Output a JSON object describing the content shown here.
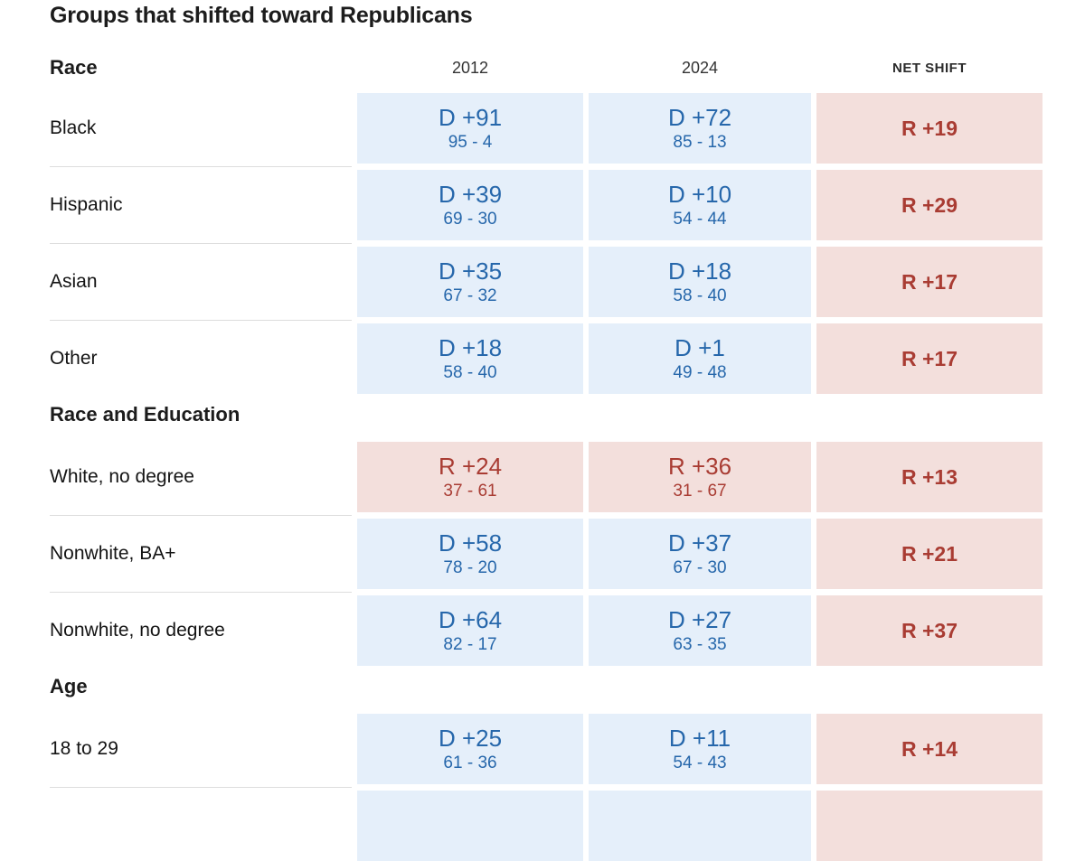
{
  "title": "Groups that shifted toward Republicans",
  "chart_data": {
    "type": "table",
    "title": "Groups that shifted toward Republicans",
    "columns": [
      "2012",
      "2024",
      "NET SHIFT"
    ],
    "colors": {
      "dem_cell_bg": "#e5effa",
      "dem_text": "#2667ab",
      "rep_cell_bg": "#f3dfdc",
      "rep_text": "#a93c33"
    },
    "sections": [
      {
        "header": "Race",
        "rows": [
          {
            "label": "Black",
            "v2012": {
              "margin": "D +91",
              "split": "95 - 4",
              "party": "dem"
            },
            "v2024": {
              "margin": "D +72",
              "split": "85 - 13",
              "party": "dem"
            },
            "net": {
              "margin": "R +19",
              "party": "rep"
            }
          },
          {
            "label": "Hispanic",
            "v2012": {
              "margin": "D +39",
              "split": "69 - 30",
              "party": "dem"
            },
            "v2024": {
              "margin": "D +10",
              "split": "54 - 44",
              "party": "dem"
            },
            "net": {
              "margin": "R +29",
              "party": "rep"
            }
          },
          {
            "label": "Asian",
            "v2012": {
              "margin": "D +35",
              "split": "67 - 32",
              "party": "dem"
            },
            "v2024": {
              "margin": "D +18",
              "split": "58 - 40",
              "party": "dem"
            },
            "net": {
              "margin": "R +17",
              "party": "rep"
            }
          },
          {
            "label": "Other",
            "v2012": {
              "margin": "D +18",
              "split": "58 - 40",
              "party": "dem"
            },
            "v2024": {
              "margin": "D +1",
              "split": "49 - 48",
              "party": "dem"
            },
            "net": {
              "margin": "R +17",
              "party": "rep"
            }
          }
        ]
      },
      {
        "header": "Race and Education",
        "rows": [
          {
            "label": "White, no degree",
            "v2012": {
              "margin": "R +24",
              "split": "37 - 61",
              "party": "rep"
            },
            "v2024": {
              "margin": "R +36",
              "split": "31 - 67",
              "party": "rep"
            },
            "net": {
              "margin": "R +13",
              "party": "rep"
            }
          },
          {
            "label": "Nonwhite, BA+",
            "v2012": {
              "margin": "D +58",
              "split": "78 - 20",
              "party": "dem"
            },
            "v2024": {
              "margin": "D +37",
              "split": "67 - 30",
              "party": "dem"
            },
            "net": {
              "margin": "R +21",
              "party": "rep"
            }
          },
          {
            "label": "Nonwhite, no degree",
            "v2012": {
              "margin": "D +64",
              "split": "82 - 17",
              "party": "dem"
            },
            "v2024": {
              "margin": "D +27",
              "split": "63 - 35",
              "party": "dem"
            },
            "net": {
              "margin": "R +37",
              "party": "rep"
            }
          }
        ]
      },
      {
        "header": "Age",
        "rows": [
          {
            "label": "18 to 29",
            "v2012": {
              "margin": "D +25",
              "split": "61 - 36",
              "party": "dem"
            },
            "v2024": {
              "margin": "D +11",
              "split": "54 - 43",
              "party": "dem"
            },
            "net": {
              "margin": "R +14",
              "party": "rep"
            }
          },
          {
            "label": "",
            "v2012": {
              "margin": "",
              "split": "",
              "party": "dem"
            },
            "v2024": {
              "margin": "",
              "split": "",
              "party": "dem"
            },
            "net": {
              "margin": "",
              "party": "rep"
            }
          }
        ]
      }
    ]
  }
}
